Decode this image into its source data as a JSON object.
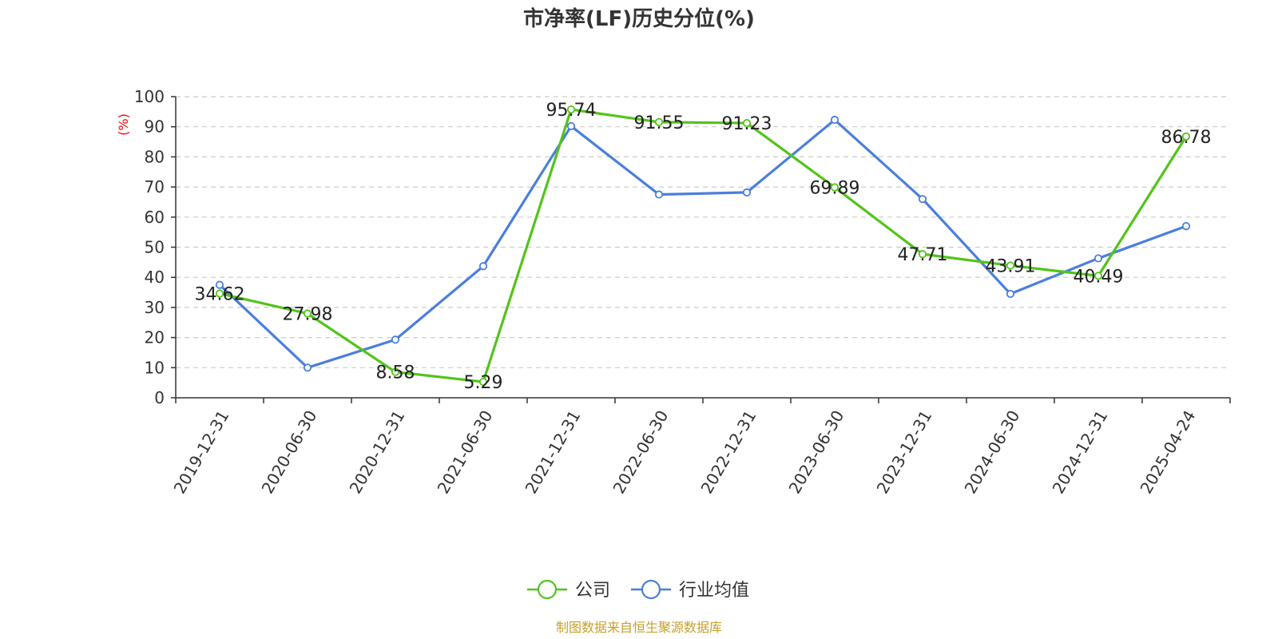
{
  "chart_data": {
    "type": "line",
    "title": "市净率(LF)历史分位(%)",
    "ylabel": "(%)",
    "ylim": [
      0,
      100
    ],
    "yticks": [
      0,
      10,
      20,
      30,
      40,
      50,
      60,
      70,
      80,
      90,
      100
    ],
    "categories": [
      "2019-12-31",
      "2020-06-30",
      "2020-12-31",
      "2021-06-30",
      "2021-12-31",
      "2022-06-30",
      "2022-12-31",
      "2023-06-30",
      "2023-12-31",
      "2024-06-30",
      "2024-12-31",
      "2025-04-24"
    ],
    "grid": true,
    "legend_position": "bottom",
    "series": [
      {
        "name": "公司",
        "color": "#52c41a",
        "values": [
          34.62,
          27.98,
          8.58,
          5.29,
          95.74,
          91.55,
          91.23,
          69.89,
          47.71,
          43.91,
          40.49,
          86.78
        ],
        "show_labels": true
      },
      {
        "name": "行业均值",
        "color": "#4a7fdc",
        "values": [
          37.5,
          10.0,
          19.3,
          43.7,
          90.2,
          67.5,
          68.2,
          92.3,
          66.0,
          34.5,
          46.3,
          57.0
        ],
        "show_labels": false
      }
    ],
    "source": "制图数据来自恒生聚源数据库"
  }
}
